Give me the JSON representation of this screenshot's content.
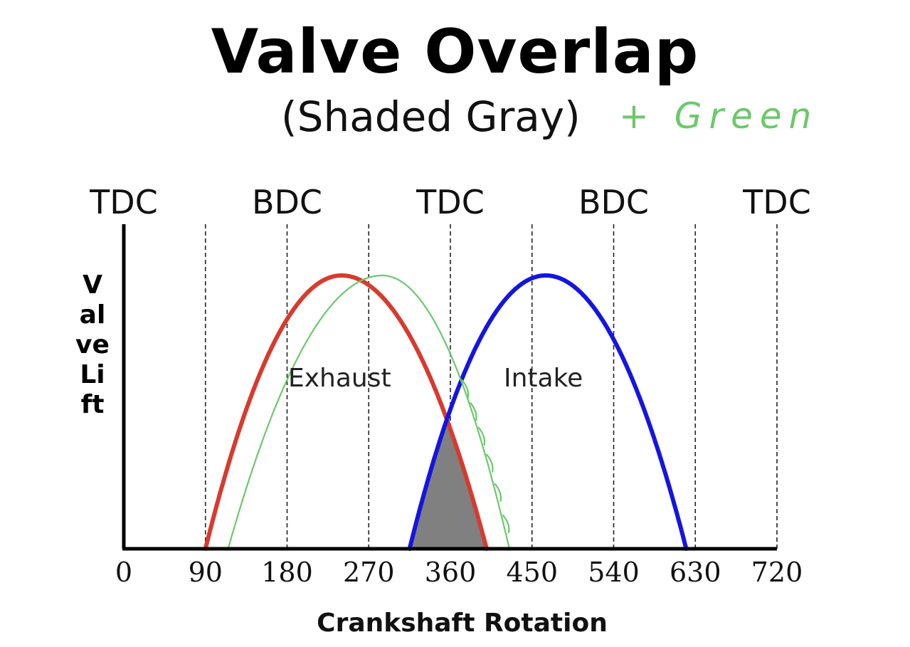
{
  "chart_data": {
    "type": "line",
    "title": "Valve Overlap",
    "subtitle": "(Shaded Gray)",
    "annotation_handwritten": "+ Green",
    "xlabel": "Crankshaft Rotation",
    "ylabel": "Valve Lift",
    "xlim": [
      0,
      720
    ],
    "x_ticks": [
      0,
      90,
      180,
      270,
      360,
      450,
      540,
      630,
      720
    ],
    "x_tick_labels": [
      "0",
      "90",
      "180",
      "270",
      "360",
      "450",
      "540",
      "630",
      "720"
    ],
    "vertical_dashed_lines": [
      90,
      180,
      270,
      360,
      450,
      540,
      630,
      720
    ],
    "phase_labels": [
      {
        "label": "TDC",
        "x": 0
      },
      {
        "label": "BDC",
        "x": 180
      },
      {
        "label": "TDC",
        "x": 360
      },
      {
        "label": "BDC",
        "x": 540
      },
      {
        "label": "TDC",
        "x": 720
      }
    ],
    "ylim": [
      0,
      1.1
    ],
    "series": [
      {
        "name": "Exhaust",
        "color": "#d83a2e",
        "start": 90,
        "peak": 240,
        "end": 400,
        "peak_lift": 1.0
      },
      {
        "name": "Intake",
        "color": "#1515e0",
        "start": 315,
        "peak": 465,
        "end": 620,
        "peak_lift": 1.0
      },
      {
        "name": "",
        "color": "#6cc86c",
        "start": 115,
        "peak": 285,
        "end": 425,
        "peak_lift": 1.0,
        "hand_drawn": true
      }
    ],
    "overlap_region": {
      "from": 315,
      "to": 400,
      "fill": "#808080"
    },
    "grid": false
  }
}
